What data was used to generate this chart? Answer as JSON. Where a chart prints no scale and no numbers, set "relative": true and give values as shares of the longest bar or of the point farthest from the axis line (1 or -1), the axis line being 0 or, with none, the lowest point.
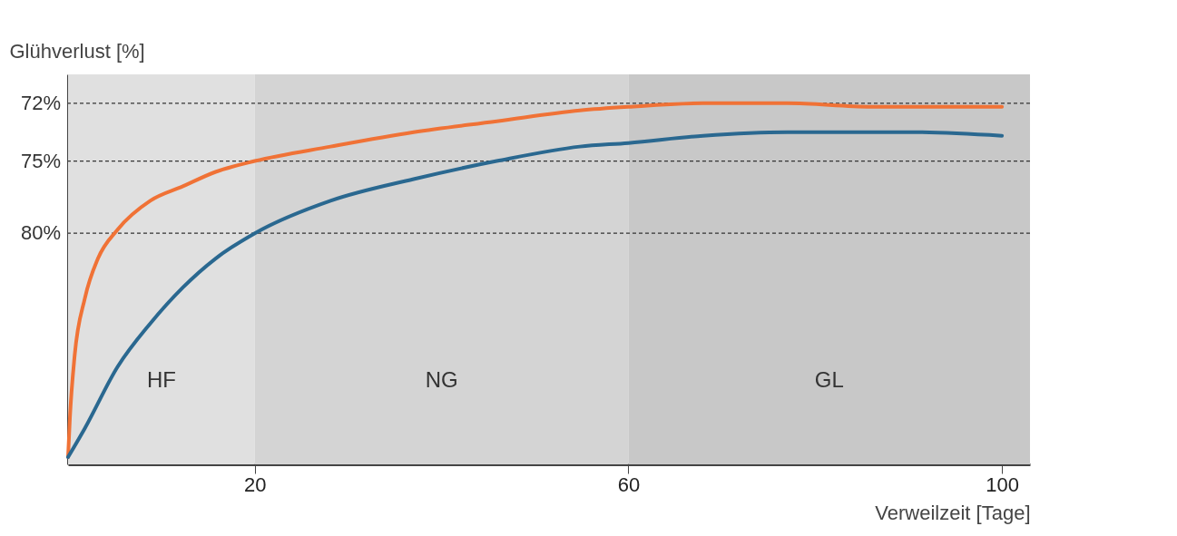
{
  "chart_data": {
    "type": "line",
    "xlabel": "Verweilzeit [Tage]",
    "ylabel": "Glühverlust [%]",
    "relative": true,
    "xlim": [
      0,
      103
    ],
    "xticks": [
      20,
      60,
      100
    ],
    "marker": "none",
    "line_style": "solid",
    "annotations": [
      "72%",
      "75%",
      "80%"
    ],
    "series": [
      {
        "color": "#f07236",
        "x": [
          0,
          0.2,
          0.7,
          1.8,
          3.2,
          5.3,
          8.8,
          12.3,
          15.8,
          20,
          28.1,
          37,
          45.9,
          54.8,
          60,
          68,
          77,
          86,
          100
        ],
        "values": [
          0.02,
          0.13,
          0.3,
          0.46,
          0.57,
          0.65,
          0.73,
          0.77,
          0.81,
          0.84,
          0.88,
          0.92,
          0.95,
          0.98,
          0.99,
          1,
          1,
          0.99,
          0.99
        ]
      },
      {
        "color": "#2a6890",
        "x": [
          0,
          1.8,
          5.3,
          8.8,
          12.3,
          15.8,
          20,
          28.1,
          37,
          45.9,
          54.8,
          60,
          68,
          77,
          81.4,
          90.4,
          100
        ],
        "values": [
          0.02,
          0.1,
          0.27,
          0.39,
          0.49,
          0.57,
          0.64,
          0.73,
          0.79,
          0.84,
          0.88,
          0.89,
          0.91,
          0.92,
          0.92,
          0.92,
          0.91
        ]
      }
    ],
    "bands": [
      {
        "axis": "x",
        "from": 0,
        "to": 20,
        "label": "HF",
        "color": "#e0e0e0"
      },
      {
        "axis": "x",
        "from": 20,
        "to": 60,
        "label": "NG",
        "color": "#d4d4d4"
      },
      {
        "axis": "x",
        "from": 60,
        "to": 103,
        "label": "GL",
        "color": "#c8c8c8"
      }
    ],
    "ref_lines": [
      {
        "axis": "y",
        "value": 1,
        "line_style": "dashed",
        "color": "#333333"
      },
      {
        "axis": "y",
        "value": 0.84,
        "line_style": "dashed",
        "color": "#333333"
      },
      {
        "axis": "y",
        "value": 0.64,
        "line_style": "dashed",
        "color": "#333333"
      }
    ]
  }
}
